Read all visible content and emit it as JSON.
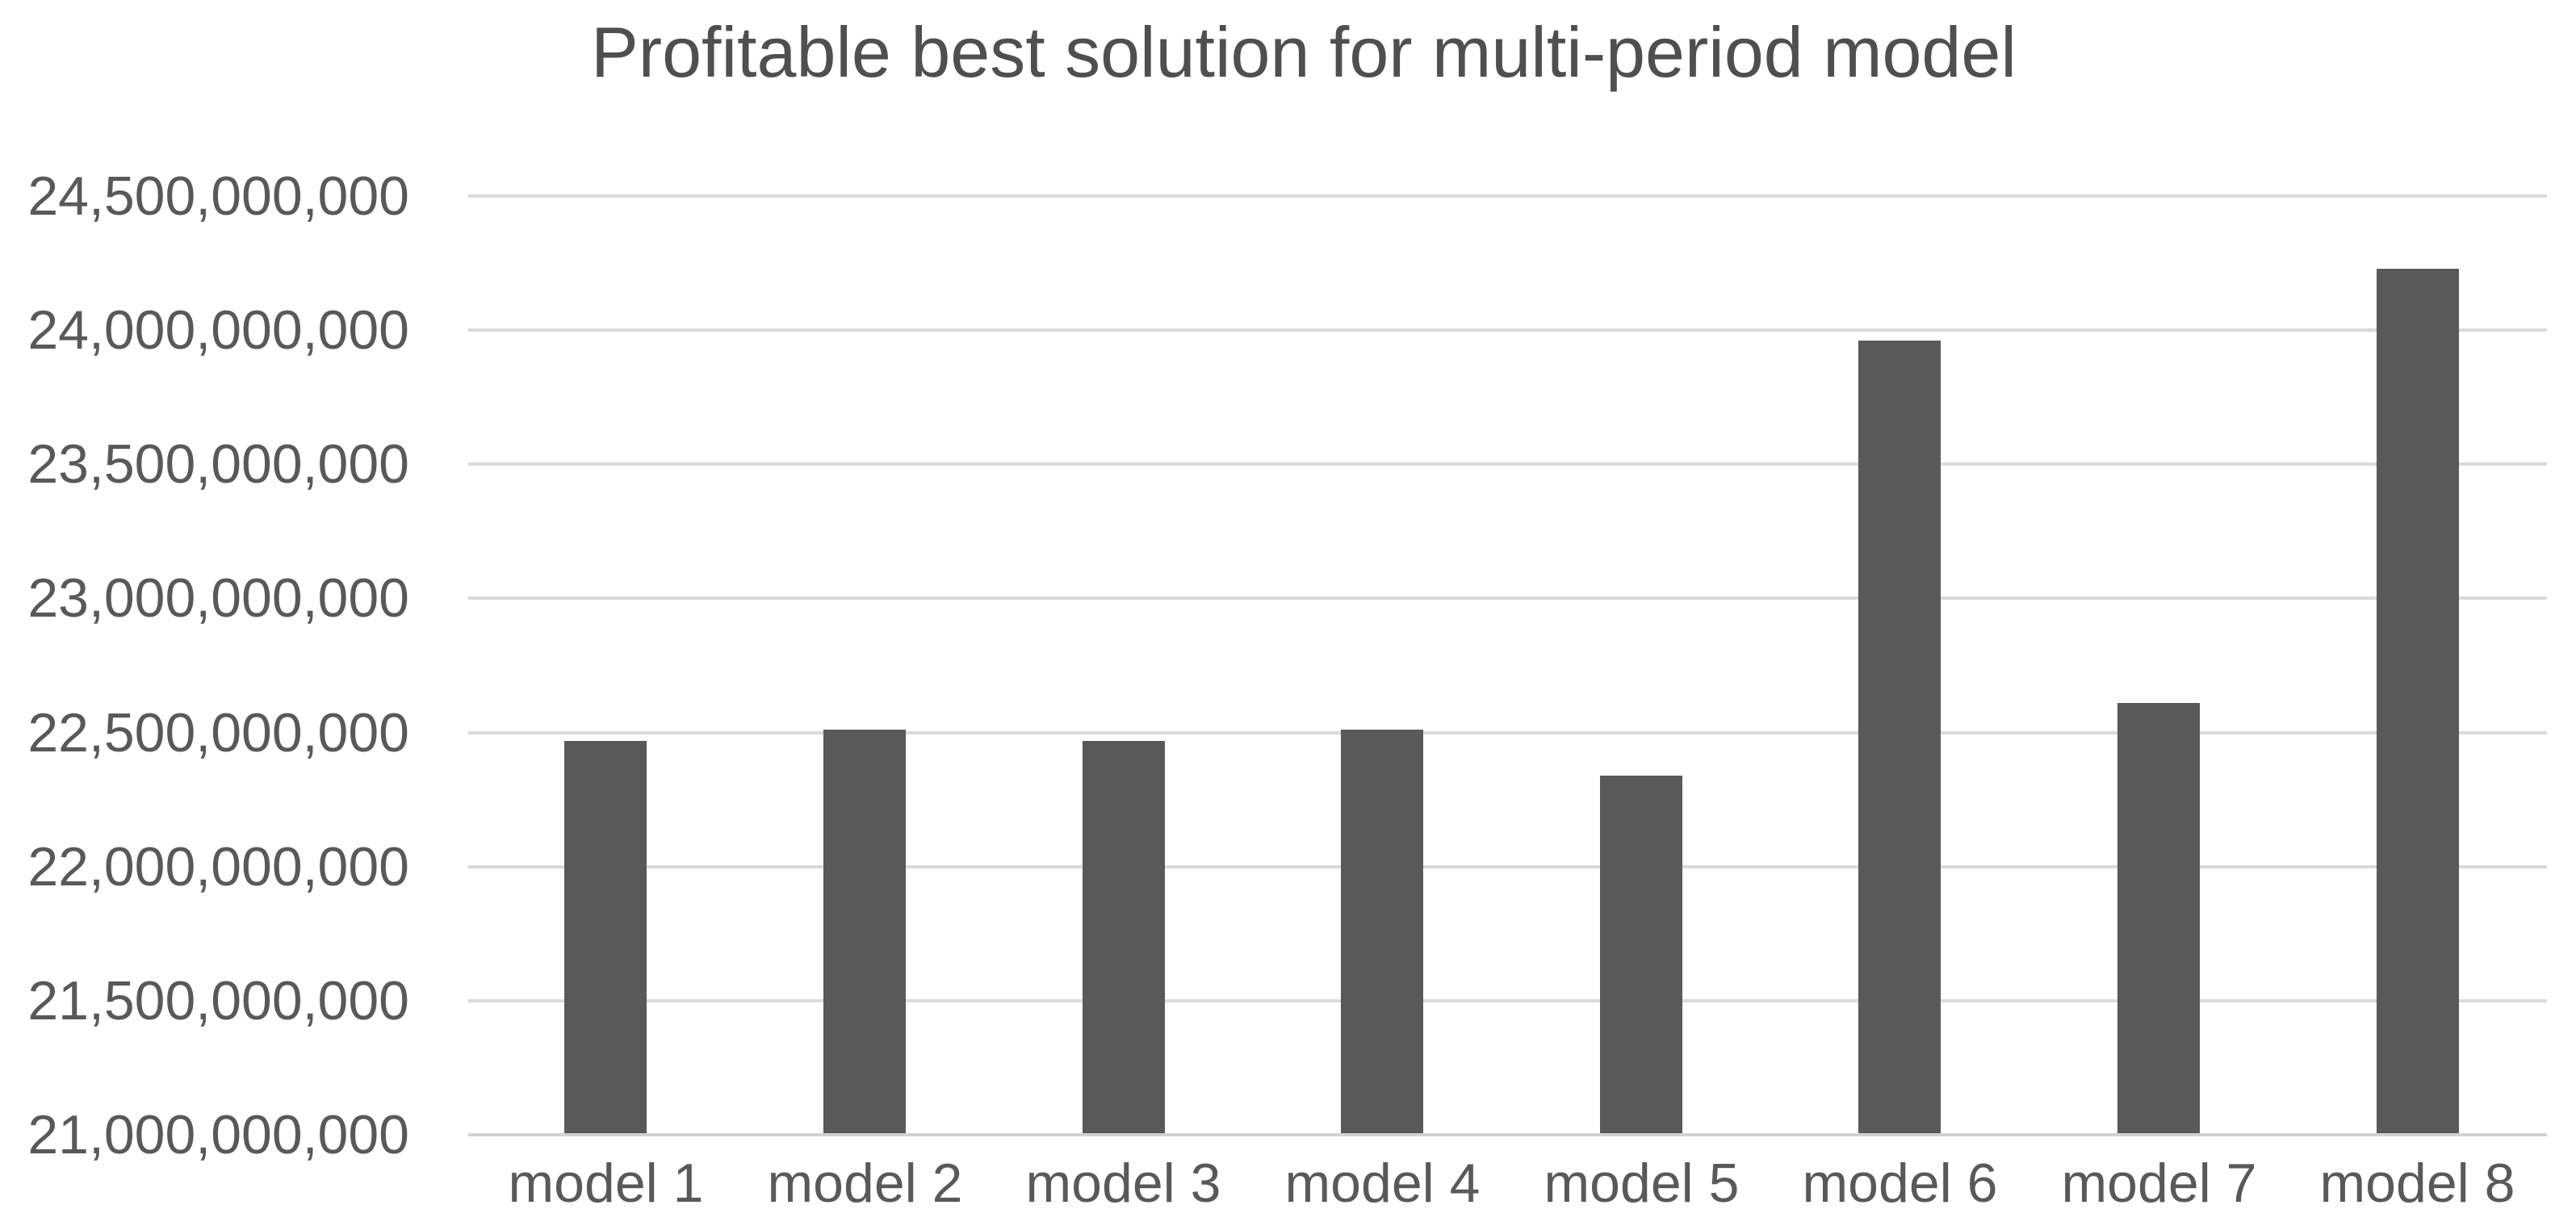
{
  "page": {
    "background": "#ffffff"
  },
  "chart_data": {
    "type": "bar",
    "title": "Profitable best solution for multi-period model",
    "categories": [
      "model 1",
      "model 2",
      "model 3",
      "model 4",
      "model 5",
      "model 6",
      "model 7",
      "model 8"
    ],
    "values": [
      22470000000,
      22510000000,
      22470000000,
      22510000000,
      22340000000,
      23960000000,
      22610000000,
      24230000000
    ],
    "xlabel": "",
    "ylabel": "",
    "ylim": [
      21000000000,
      24500000000
    ],
    "ytick_step": 500000000,
    "ytick_labels": [
      "24,500,000,000",
      "24,000,000,000",
      "23,500,000,000",
      "23,000,000,000",
      "22,500,000,000",
      "22,000,000,000",
      "21,500,000,000",
      "21,000,000,000"
    ],
    "grid": "horizontal",
    "legend_position": "none",
    "colors": {
      "bar": "#595959",
      "gridline": "#dadada",
      "axis_line": "#d2d2d2",
      "tick_text": "#595959",
      "title_text": "#4f4f4f",
      "background": "#ffffff"
    }
  }
}
